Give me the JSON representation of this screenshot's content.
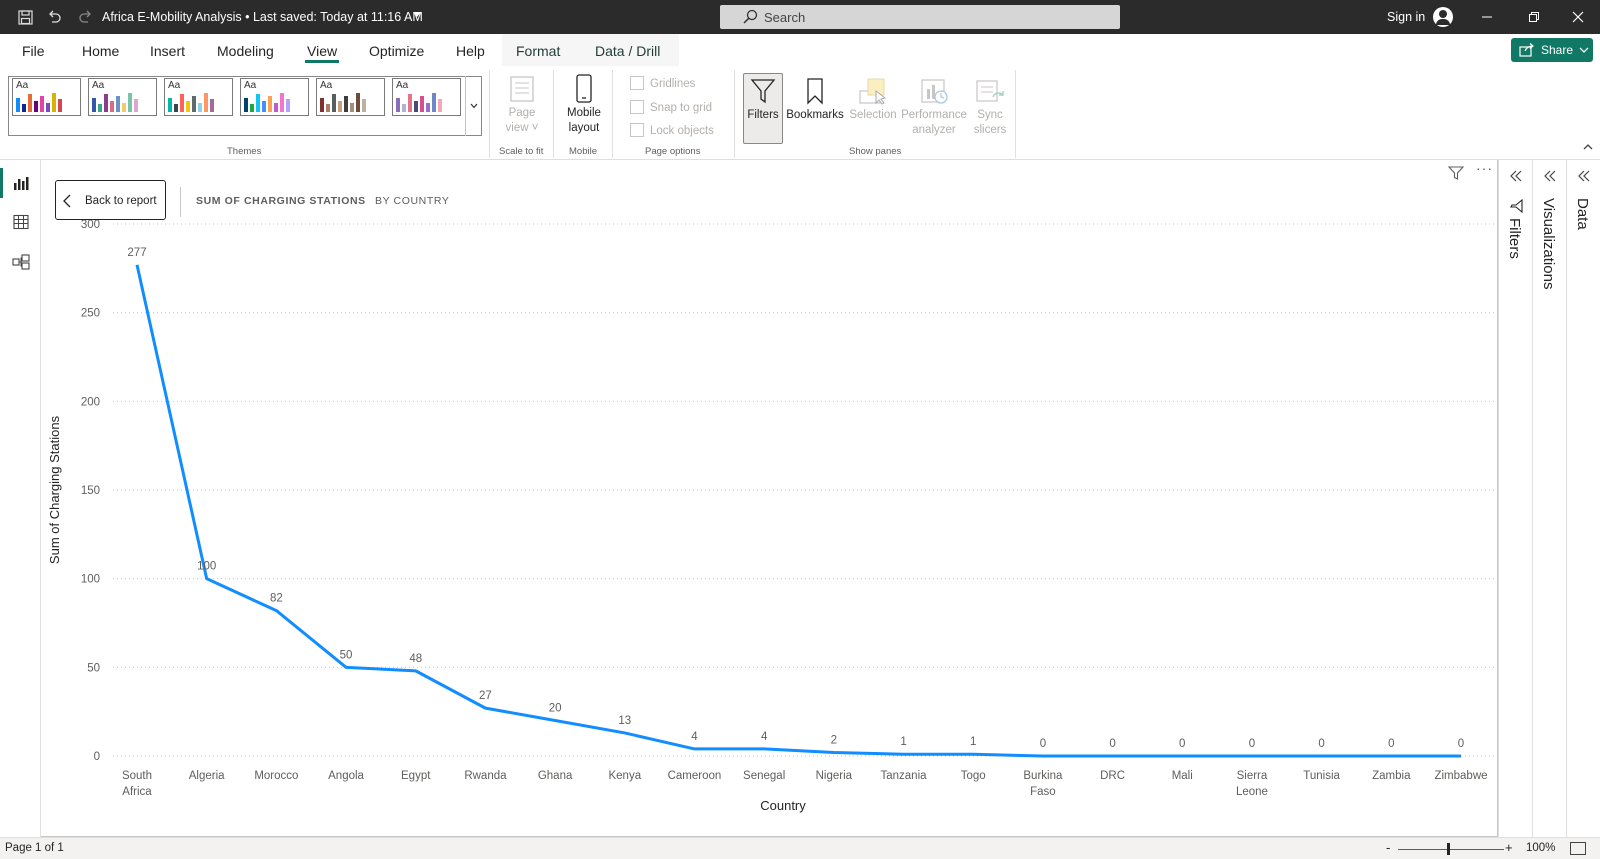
{
  "window": {
    "title": "Africa E-Mobility Analysis • Last saved: Today at 11:16 AM",
    "search_placeholder": "Search",
    "sign_in": "Sign in",
    "share_label": "Share"
  },
  "ribbon_tabs": [
    "File",
    "Home",
    "Insert",
    "Modeling",
    "View",
    "Optimize",
    "Help",
    "Format",
    "Data / Drill"
  ],
  "active_tab": "View",
  "ribbon": {
    "themes_label": "Themes",
    "theme_tile_text": "Aa",
    "scale_group_label": "Scale to fit",
    "page_view_label_1": "Page",
    "page_view_label_2": "view",
    "mobile_group_label": "Mobile",
    "mobile_layout_label_1": "Mobile",
    "mobile_layout_label_2": "layout",
    "page_options_label": "Page options",
    "gridlines": "Gridlines",
    "snap_to_grid": "Snap to grid",
    "lock_objects": "Lock objects",
    "show_panes_label": "Show panes",
    "filters": "Filters",
    "bookmarks": "Bookmarks",
    "selection": "Selection",
    "performance_1": "Performance",
    "performance_2": "analyzer",
    "sync_1": "Sync",
    "sync_2": "slicers"
  },
  "themes": [
    {
      "colors": [
        "#118dff",
        "#12239e",
        "#e66c37",
        "#6b007b",
        "#e044a7",
        "#744ec2",
        "#d9b300",
        "#d64550"
      ]
    },
    {
      "colors": [
        "#3257a8",
        "#37a794",
        "#8b3d88",
        "#dd6b7f",
        "#6b91c9",
        "#f5c869",
        "#77c4a8",
        "#dea6cf"
      ]
    },
    {
      "colors": [
        "#01b8aa",
        "#374649",
        "#fd625e",
        "#f2c80f",
        "#5f6b6d",
        "#8ad4eb",
        "#fe9666",
        "#a66999"
      ]
    },
    {
      "colors": [
        "#004172",
        "#1aab40",
        "#15c6f4",
        "#4092ff",
        "#ffa058",
        "#be5dc9",
        "#f472d0",
        "#b5a1ff"
      ]
    },
    {
      "colors": [
        "#7f312f",
        "#ad7e67",
        "#5c5c5c",
        "#c8a080",
        "#3e3e3e",
        "#a08f7a",
        "#6f4b3e",
        "#bdb09e"
      ]
    },
    {
      "colors": [
        "#8a6ebc",
        "#a9b7d5",
        "#e6738b",
        "#4a4a73",
        "#d64f8e",
        "#9b6cd1",
        "#6d88c5",
        "#f1a7b6"
      ]
    }
  ],
  "drill_header": {
    "back_label": "Back to report",
    "breadcrumb_1": "SUM OF CHARGING STATIONS",
    "breadcrumb_2": "BY COUNTRY"
  },
  "panes": {
    "filters": "Filters",
    "visualizations": "Visualizations",
    "data": "Data"
  },
  "status": {
    "page": "Page 1 of 1",
    "zoom": "100%",
    "zoom_value": 100,
    "zoom_minus": "-",
    "zoom_plus": "+"
  },
  "chart_data": {
    "type": "line",
    "xlabel": "Country",
    "ylabel": "Sum of Charging Stations",
    "ylim": [
      0,
      300
    ],
    "yticks": [
      0,
      50,
      100,
      150,
      200,
      250,
      300
    ],
    "categories": [
      [
        "South",
        "Africa"
      ],
      [
        "Algeria"
      ],
      [
        "Morocco"
      ],
      [
        "Angola"
      ],
      [
        "Egypt"
      ],
      [
        "Rwanda"
      ],
      [
        "Ghana"
      ],
      [
        "Kenya"
      ],
      [
        "Cameroon"
      ],
      [
        "Senegal"
      ],
      [
        "Nigeria"
      ],
      [
        "Tanzania"
      ],
      [
        "Togo"
      ],
      [
        "Burkina",
        "Faso"
      ],
      [
        "DRC"
      ],
      [
        "Mali"
      ],
      [
        "Sierra",
        "Leone"
      ],
      [
        "Tunisia"
      ],
      [
        "Zambia"
      ],
      [
        "Zimbabwe"
      ]
    ],
    "values": [
      277,
      100,
      82,
      50,
      48,
      27,
      20,
      13,
      4,
      4,
      2,
      1,
      1,
      0,
      0,
      0,
      0,
      0,
      0,
      0
    ],
    "line_color": "#118dff",
    "grid": true
  }
}
